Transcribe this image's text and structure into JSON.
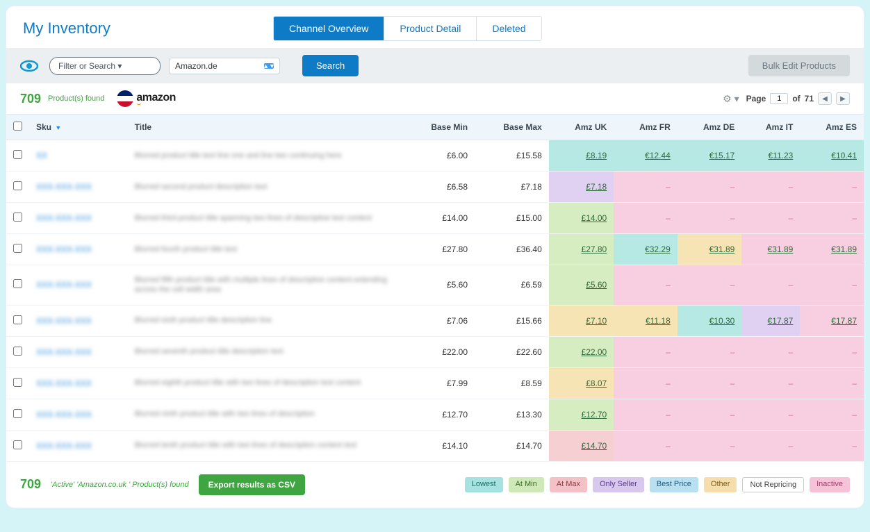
{
  "header": {
    "title": "My Inventory",
    "tabs": [
      {
        "label": "Channel Overview",
        "active": true
      },
      {
        "label": "Product Detail",
        "active": false
      },
      {
        "label": "Deleted",
        "active": false
      }
    ]
  },
  "toolbar": {
    "filter_placeholder": "Filter or Search ▾",
    "channel_value": "Amazon.de",
    "search_label": "Search",
    "bulk_label": "Bulk Edit Products"
  },
  "subheader": {
    "count": "709",
    "count_label": "Product(s) found",
    "brand": "amazon",
    "page_label": "Page",
    "page_current": "1",
    "page_of": "of",
    "page_total": "71"
  },
  "columns": [
    "",
    "Sku",
    "Title",
    "Base Min",
    "Base Max",
    "Amz UK",
    "Amz FR",
    "Amz DE",
    "Amz IT",
    "Amz ES"
  ],
  "legend": [
    {
      "label": "Lowest",
      "cls": "bg-lowest"
    },
    {
      "label": "At Min",
      "cls": "bg-atmin"
    },
    {
      "label": "At Max",
      "cls": "bg-atmax"
    },
    {
      "label": "Only Seller",
      "cls": "bg-only"
    },
    {
      "label": "Best Price",
      "cls": "bg-best"
    },
    {
      "label": "Other",
      "cls": "bg-other"
    },
    {
      "label": "Not Repricing",
      "cls": "bg-norep"
    },
    {
      "label": "Inactive",
      "cls": "bg-inact"
    }
  ],
  "footer": {
    "count": "709",
    "label": "'Active' 'Amazon.co.uk ' Product(s) found",
    "export_label": "Export results as CSV"
  },
  "rows": [
    {
      "sku": "XX",
      "title": "Blurred product title text line one and line two continuing here",
      "min": "£6.00",
      "max": "£15.58",
      "cells": [
        {
          "v": "£8.19",
          "c": "c-lowest"
        },
        {
          "v": "€12.44",
          "c": "c-lowest"
        },
        {
          "v": "€15.17",
          "c": "c-lowest"
        },
        {
          "v": "€11.23",
          "c": "c-lowest"
        },
        {
          "v": "€10.41",
          "c": "c-lowest"
        }
      ]
    },
    {
      "sku": "XXX-XXX-XXX",
      "title": "Blurred second product description text",
      "min": "£6.58",
      "max": "£7.18",
      "cells": [
        {
          "v": "£7.18",
          "c": "c-only"
        },
        {
          "v": "–",
          "c": "c-inact",
          "dash": true
        },
        {
          "v": "–",
          "c": "c-inact",
          "dash": true
        },
        {
          "v": "–",
          "c": "c-inact",
          "dash": true
        },
        {
          "v": "–",
          "c": "c-inact",
          "dash": true
        }
      ]
    },
    {
      "sku": "XXX-XXX-XXX",
      "title": "Blurred third product title spanning two lines of descriptive text content",
      "min": "£14.00",
      "max": "£15.00",
      "cells": [
        {
          "v": "£14.00",
          "c": "c-atmin"
        },
        {
          "v": "–",
          "c": "c-inact",
          "dash": true
        },
        {
          "v": "–",
          "c": "c-inact",
          "dash": true
        },
        {
          "v": "–",
          "c": "c-inact",
          "dash": true
        },
        {
          "v": "–",
          "c": "c-inact",
          "dash": true
        }
      ]
    },
    {
      "sku": "XXX-XXX-XXX",
      "title": "Blurred fourth product title text",
      "min": "£27.80",
      "max": "£36.40",
      "cells": [
        {
          "v": "£27.80",
          "c": "c-atmin"
        },
        {
          "v": "€32.29",
          "c": "c-lowest"
        },
        {
          "v": "€31.89",
          "c": "c-other"
        },
        {
          "v": "€31.89",
          "c": "c-inact"
        },
        {
          "v": "€31.89",
          "c": "c-inact"
        }
      ]
    },
    {
      "sku": "XXX-XXX-XXX",
      "title": "Blurred fifth product title with multiple lines of descriptive content extending across the cell width area",
      "min": "£5.60",
      "max": "£6.59",
      "cells": [
        {
          "v": "£5.60",
          "c": "c-atmin"
        },
        {
          "v": "–",
          "c": "c-inact",
          "dash": true
        },
        {
          "v": "–",
          "c": "c-inact",
          "dash": true
        },
        {
          "v": "–",
          "c": "c-inact",
          "dash": true
        },
        {
          "v": "–",
          "c": "c-inact",
          "dash": true
        }
      ]
    },
    {
      "sku": "XXX-XXX-XXX",
      "title": "Blurred sixth product title description line",
      "min": "£7.06",
      "max": "£15.66",
      "cells": [
        {
          "v": "£7.10",
          "c": "c-other"
        },
        {
          "v": "€11.18",
          "c": "c-other"
        },
        {
          "v": "€10.30",
          "c": "c-lowest"
        },
        {
          "v": "€17.87",
          "c": "c-only"
        },
        {
          "v": "€17.87",
          "c": "c-inact"
        }
      ]
    },
    {
      "sku": "XXX-XXX-XXX",
      "title": "Blurred seventh product title description text",
      "min": "£22.00",
      "max": "£22.60",
      "cells": [
        {
          "v": "£22.00",
          "c": "c-atmin"
        },
        {
          "v": "–",
          "c": "c-inact",
          "dash": true
        },
        {
          "v": "–",
          "c": "c-inact",
          "dash": true
        },
        {
          "v": "–",
          "c": "c-inact",
          "dash": true
        },
        {
          "v": "–",
          "c": "c-inact",
          "dash": true
        }
      ]
    },
    {
      "sku": "XXX-XXX-XXX",
      "title": "Blurred eighth product title with two lines of description text content",
      "min": "£7.99",
      "max": "£8.59",
      "cells": [
        {
          "v": "£8.07",
          "c": "c-other"
        },
        {
          "v": "–",
          "c": "c-inact",
          "dash": true
        },
        {
          "v": "–",
          "c": "c-inact",
          "dash": true
        },
        {
          "v": "–",
          "c": "c-inact",
          "dash": true
        },
        {
          "v": "–",
          "c": "c-inact",
          "dash": true
        }
      ]
    },
    {
      "sku": "XXX-XXX-XXX",
      "title": "Blurred ninth product title with two lines of description",
      "min": "£12.70",
      "max": "£13.30",
      "cells": [
        {
          "v": "£12.70",
          "c": "c-atmin"
        },
        {
          "v": "–",
          "c": "c-inact",
          "dash": true
        },
        {
          "v": "–",
          "c": "c-inact",
          "dash": true
        },
        {
          "v": "–",
          "c": "c-inact",
          "dash": true
        },
        {
          "v": "–",
          "c": "c-inact",
          "dash": true
        }
      ]
    },
    {
      "sku": "XXX-XXX-XXX",
      "title": "Blurred tenth product title with two lines of description content text",
      "min": "£14.10",
      "max": "£14.70",
      "cells": [
        {
          "v": "£14.70",
          "c": "c-atmax"
        },
        {
          "v": "–",
          "c": "c-inact",
          "dash": true
        },
        {
          "v": "–",
          "c": "c-inact",
          "dash": true
        },
        {
          "v": "–",
          "c": "c-inact",
          "dash": true
        },
        {
          "v": "–",
          "c": "c-inact",
          "dash": true
        }
      ]
    }
  ]
}
